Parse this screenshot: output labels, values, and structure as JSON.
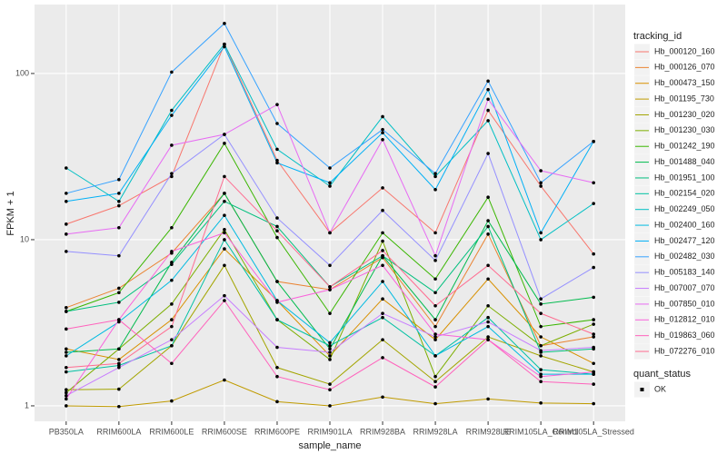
{
  "chart_data": {
    "type": "line",
    "xlabel": "sample_name",
    "ylabel": "FPKM + 1",
    "log_y": true,
    "grid": true,
    "ylim": [
      0.807,
      260
    ],
    "yticks": [
      1,
      10,
      100
    ],
    "legend_title": "tracking_id",
    "point_legend_title": "quant_status",
    "point_legend_labels": [
      "OK"
    ],
    "point_color": "#000000",
    "categories": [
      "PB350LA",
      "RRIM600LA",
      "RRIM600LE",
      "RRIM600SE",
      "RRIM600PE",
      "RRIM901LA",
      "RRIM928BA",
      "RRIM928LA",
      "RRIM928LE",
      "RRIM105LA_Control",
      "RRIM105LA_Stressed"
    ],
    "series": [
      {
        "name": "Hb_000120_160",
        "color": "#F8766D",
        "values": [
          12.4,
          16,
          24,
          150,
          30,
          11,
          20.5,
          11,
          60,
          21,
          8.2
        ]
      },
      {
        "name": "Hb_000126_070",
        "color": "#EA8331",
        "values": [
          3.9,
          5.1,
          8.3,
          19,
          5.6,
          5.0,
          7.8,
          3.0,
          10.8,
          2.3,
          2.6
        ]
      },
      {
        "name": "Hb_000473_150",
        "color": "#D89000",
        "values": [
          2.2,
          1.9,
          3.3,
          8.8,
          4.3,
          2.0,
          4.4,
          2.5,
          5.8,
          2.6,
          1.8
        ]
      },
      {
        "name": "Hb_001195_730",
        "color": "#C09B00",
        "values": [
          1.0,
          0.99,
          1.07,
          1.43,
          1.06,
          1.0,
          1.13,
          1.03,
          1.1,
          1.04,
          1.03
        ]
      },
      {
        "name": "Hb_001230_020",
        "color": "#A3A500",
        "values": [
          1.25,
          1.26,
          2.3,
          7.0,
          1.7,
          1.35,
          2.5,
          1.4,
          2.6,
          2.0,
          1.6
        ]
      },
      {
        "name": "Hb_001230_030",
        "color": "#7CAE00",
        "values": [
          1.2,
          2.2,
          4.1,
          11.5,
          3.3,
          1.9,
          9.8,
          1.5,
          4.0,
          2.3,
          3.1
        ]
      },
      {
        "name": "Hb_001242_190",
        "color": "#39B600",
        "values": [
          3.7,
          4.8,
          11.8,
          38,
          10.3,
          3.6,
          11,
          5.8,
          18,
          3.0,
          3.3
        ]
      },
      {
        "name": "Hb_001488_040",
        "color": "#00BB4E",
        "values": [
          2.1,
          2.2,
          7.3,
          19,
          5.6,
          2.2,
          8.0,
          3.3,
          13,
          4.1,
          4.5
        ]
      },
      {
        "name": "Hb_001951_100",
        "color": "#00BF7D",
        "values": [
          3.7,
          4.2,
          7.1,
          17,
          12,
          5.2,
          8.0,
          4.8,
          12,
          2.1,
          2.2
        ]
      },
      {
        "name": "Hb_002154_020",
        "color": "#00C1A3",
        "values": [
          1.6,
          1.75,
          2.3,
          10,
          3.3,
          2.3,
          3.4,
          2.0,
          3.4,
          1.65,
          1.55
        ]
      },
      {
        "name": "Hb_002249_050",
        "color": "#00BFC4",
        "values": [
          27,
          17,
          60,
          150,
          35,
          21,
          55,
          24,
          52,
          10,
          16.5
        ]
      },
      {
        "name": "Hb_002400_160",
        "color": "#00BAE0",
        "values": [
          2.0,
          3.2,
          5.7,
          14,
          4.3,
          2.4,
          5.6,
          2.0,
          3.0,
          1.55,
          1.55
        ]
      },
      {
        "name": "Hb_002477_120",
        "color": "#00B0F6",
        "values": [
          17,
          19,
          56,
          145,
          29,
          22,
          44,
          20,
          80,
          11,
          39
        ]
      },
      {
        "name": "Hb_002482_030",
        "color": "#35A2FF",
        "values": [
          19,
          23,
          102,
          200,
          50,
          27,
          46,
          25,
          90,
          22,
          39
        ]
      },
      {
        "name": "Hb_005183_140",
        "color": "#9590FF",
        "values": [
          8.5,
          8.0,
          25,
          43,
          13.5,
          7.0,
          15,
          7.5,
          33,
          4.4,
          6.8
        ]
      },
      {
        "name": "Hb_007007_070",
        "color": "#C77CFF",
        "values": [
          1.15,
          1.7,
          2.5,
          4.6,
          2.25,
          2.1,
          3.6,
          2.6,
          3.2,
          2.15,
          2.25
        ]
      },
      {
        "name": "Hb_007850_010",
        "color": "#E76BF3",
        "values": [
          10.8,
          11.8,
          37,
          43,
          65,
          11,
          40,
          8.0,
          70,
          26,
          22
        ]
      },
      {
        "name": "Hb_012812_010",
        "color": "#FA62DB",
        "values": [
          1.1,
          3.3,
          8.5,
          11,
          4.2,
          5.0,
          7.0,
          2.7,
          2.5,
          1.5,
          1.6
        ]
      },
      {
        "name": "Hb_019863_060",
        "color": "#FF62BC",
        "values": [
          2.9,
          3.3,
          1.8,
          4.3,
          1.5,
          1.25,
          1.95,
          1.3,
          2.5,
          1.4,
          1.35
        ]
      },
      {
        "name": "Hb_072276_010",
        "color": "#FF6C91",
        "values": [
          1.7,
          1.8,
          3.0,
          24,
          11.3,
          5.2,
          8.6,
          4.0,
          7.0,
          3.6,
          2.7
        ]
      }
    ]
  }
}
